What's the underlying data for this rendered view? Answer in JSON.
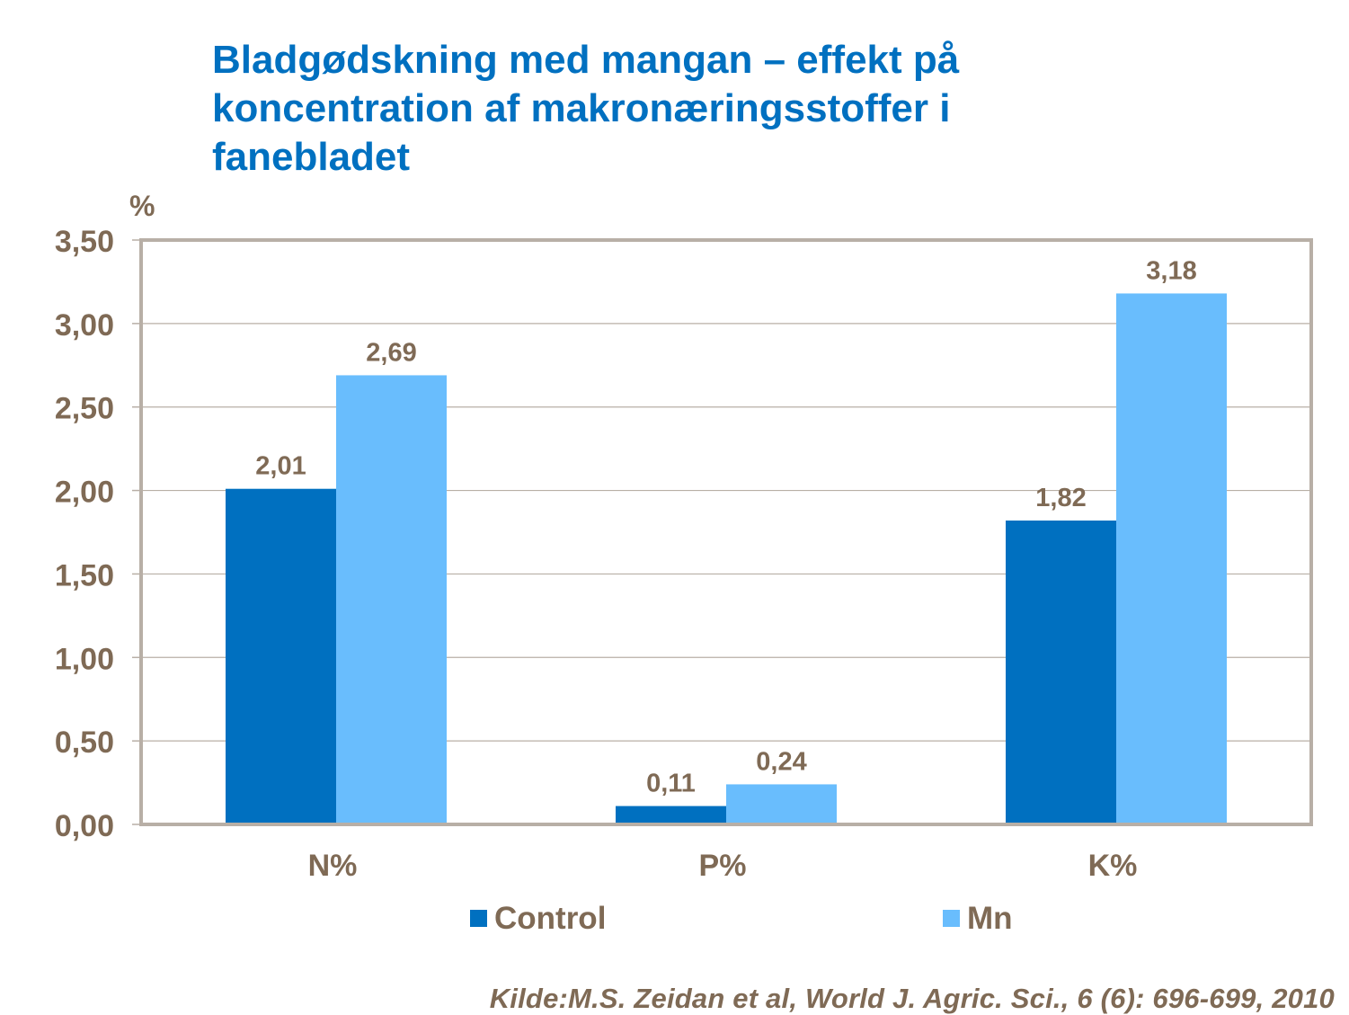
{
  "title_lines": [
    "Bladgødskning med mangan – effekt på",
    "koncentration af makronæringsstoffer i",
    "fanebladet"
  ],
  "source": "Kilde:M.S. Zeidan et al, World J. Agric. Sci., 6 (6): 696-699, 2010",
  "colors": {
    "title": "#0070C0",
    "text": "#7F6A55",
    "control": "#0070C0",
    "mn": "#69BDFD",
    "axis": "#B8AFA6",
    "grid": "#B8AFA6"
  },
  "chart_data": {
    "type": "bar",
    "title": "Bladgødskning med mangan – effekt på koncentration af makronæringsstoffer i fanebladet",
    "ylabel": "%",
    "xlabel": "",
    "categories": [
      "N%",
      "P%",
      "K%"
    ],
    "series": [
      {
        "name": "Control",
        "values": [
          2.01,
          0.11,
          1.82
        ],
        "labels": [
          "2,01",
          "0,11",
          "1,82"
        ],
        "color": "#0070C0"
      },
      {
        "name": "Mn",
        "values": [
          2.69,
          0.24,
          3.18
        ],
        "labels": [
          "2,69",
          "0,24",
          "3,18"
        ],
        "color": "#69BDFD"
      }
    ],
    "ylim": [
      0,
      3.5
    ],
    "yticks": [
      0,
      0.5,
      1.0,
      1.5,
      2.0,
      2.5,
      3.0,
      3.5
    ],
    "ytick_labels": [
      "0,00",
      "0,50",
      "1,00",
      "1,50",
      "2,00",
      "2,50",
      "3,00",
      "3,50"
    ],
    "grid": true,
    "legend": {
      "position": "bottom",
      "entries": [
        "Control",
        "Mn"
      ]
    }
  }
}
